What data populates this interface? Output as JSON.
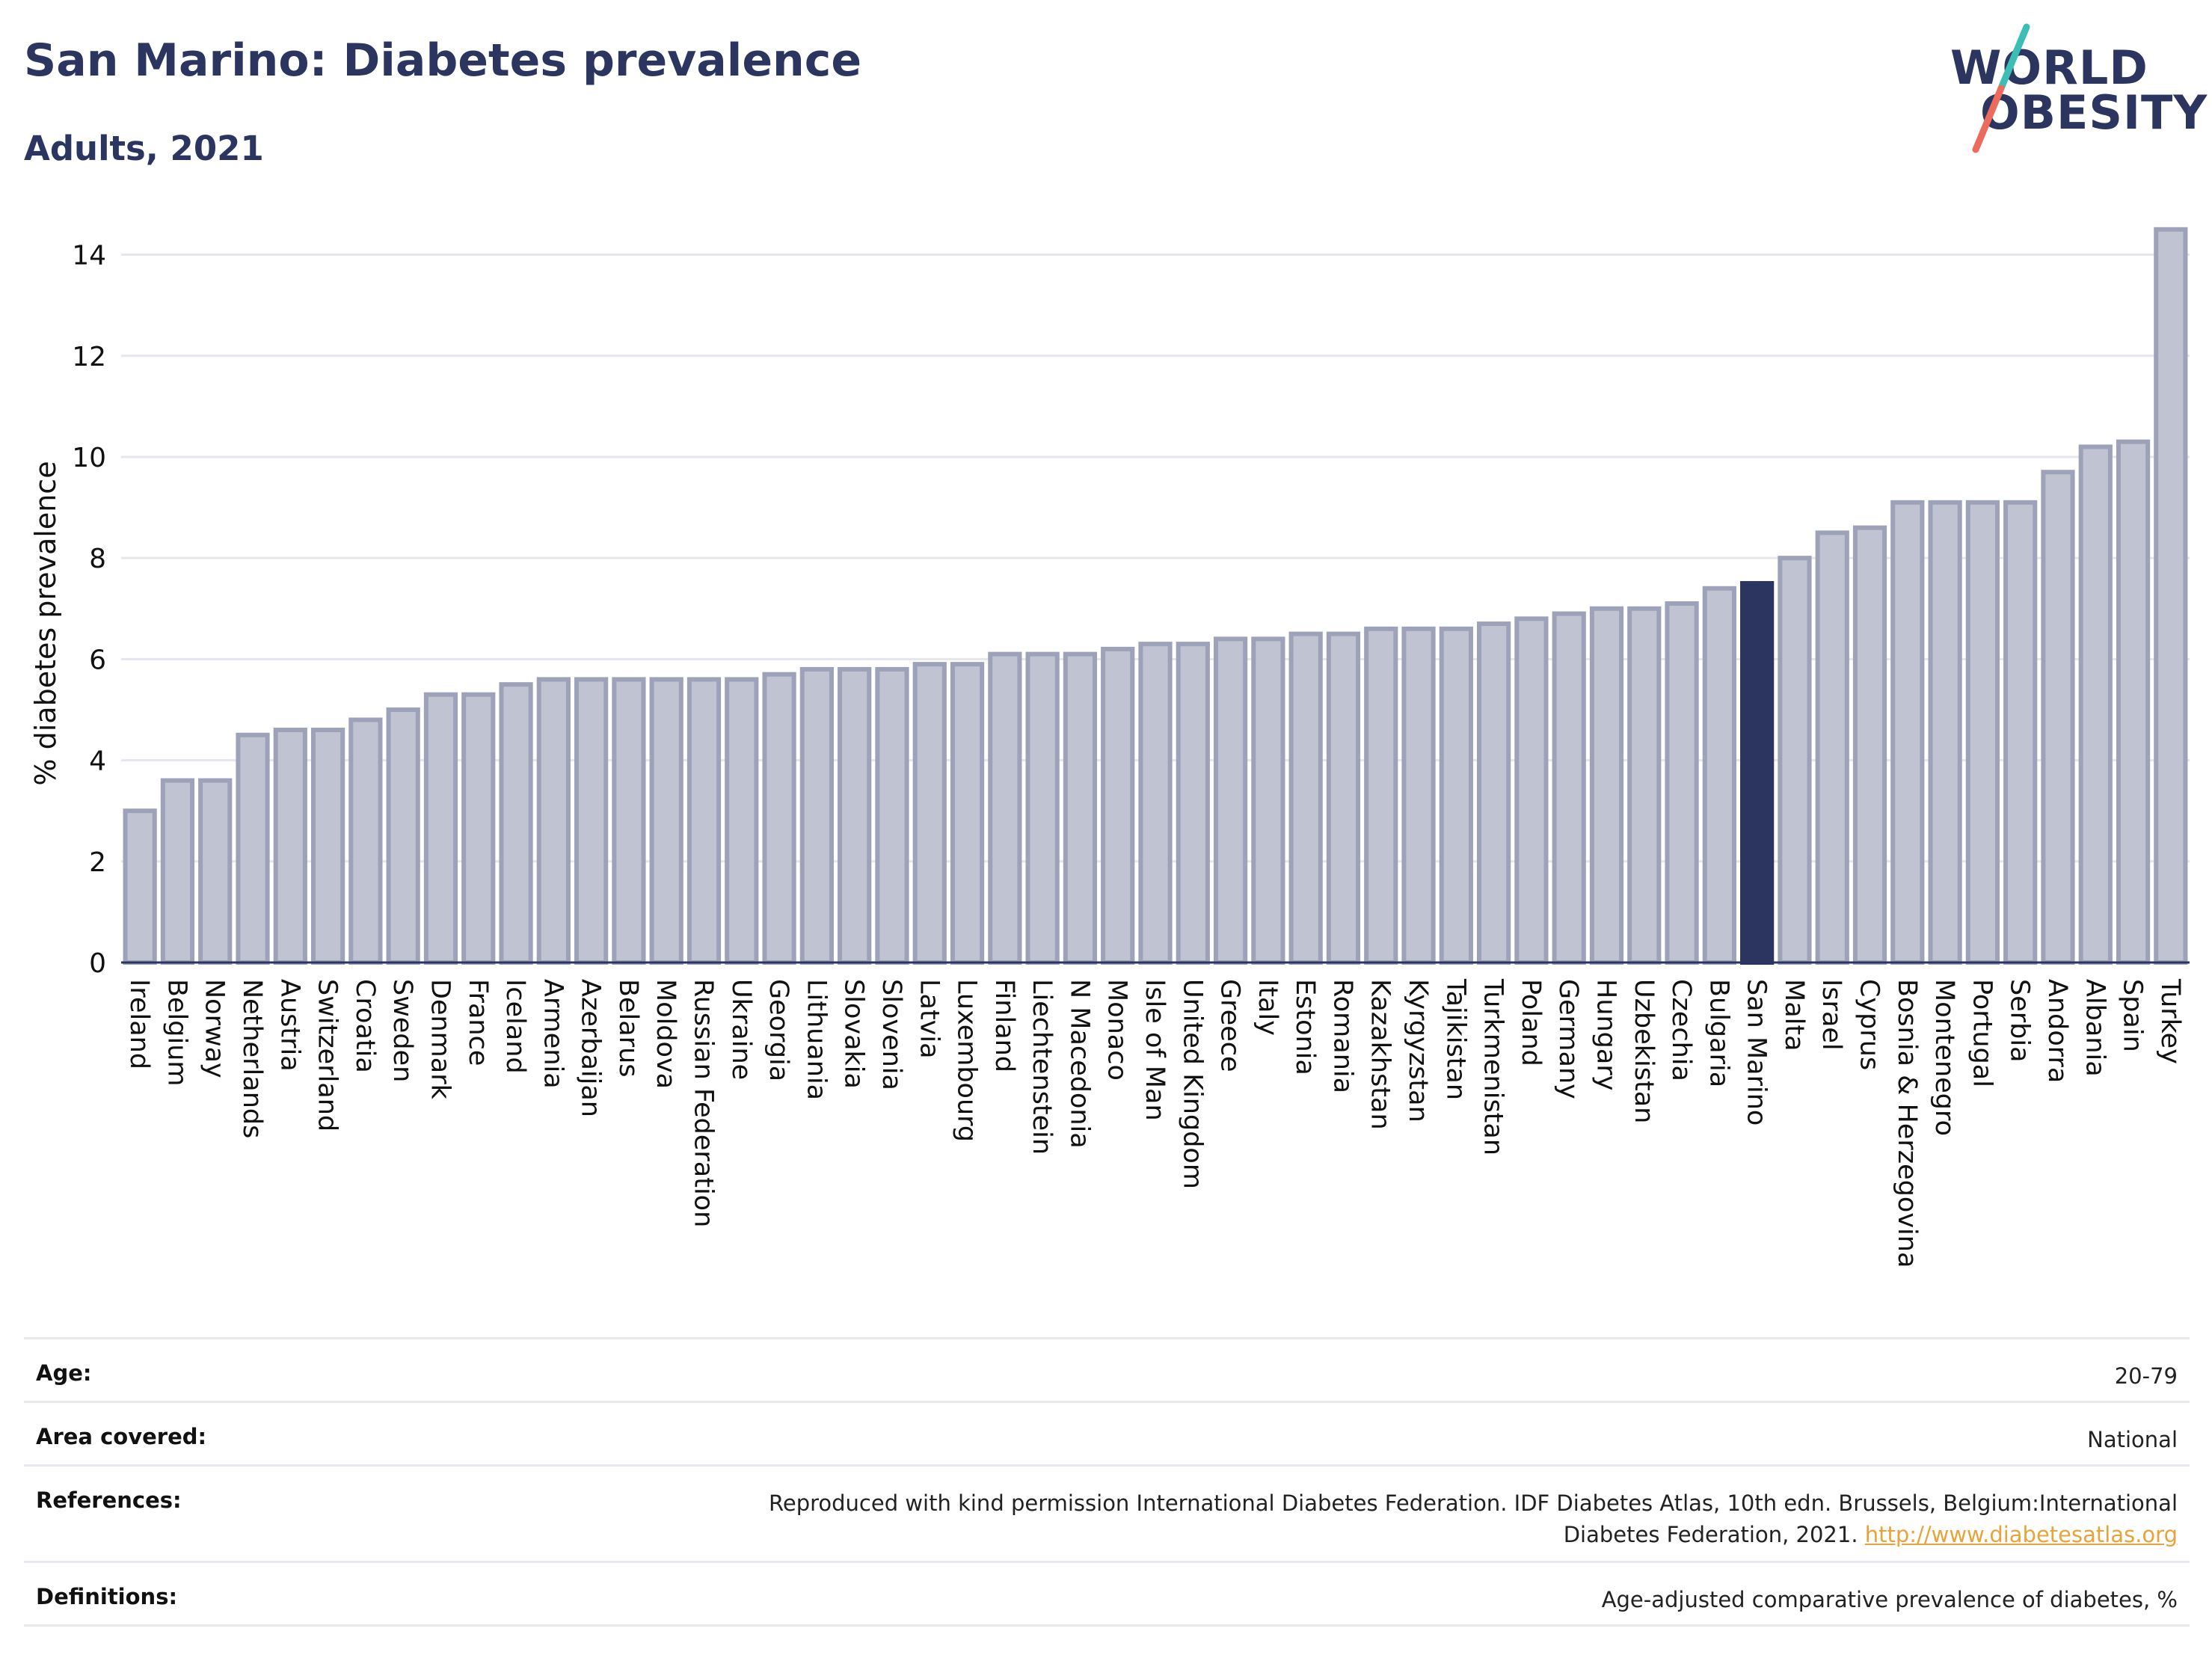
{
  "header": {
    "title": "San Marino: Diabetes prevalence",
    "subtitle": "Adults, 2021"
  },
  "logo": {
    "line1": "WORLD",
    "line2": "OBESITY",
    "brand_color": "#2b3560",
    "accent_teal": "#3bbfb4",
    "accent_coral": "#ec6b5d"
  },
  "chart_data": {
    "type": "bar",
    "ylabel": "% diabetes prevalence",
    "xlabel": "",
    "ylim": [
      0,
      14.6
    ],
    "yticks": [
      0,
      2,
      4,
      6,
      8,
      10,
      12,
      14
    ],
    "grid": true,
    "highlight": "San Marino",
    "colors": {
      "bar": "#c0c3d1",
      "bar_edge": "#9da2b9",
      "highlight": "#2b3560"
    },
    "categories": [
      "Ireland",
      "Belgium",
      "Norway",
      "Netherlands",
      "Austria",
      "Switzerland",
      "Croatia",
      "Sweden",
      "Denmark",
      "France",
      "Iceland",
      "Armenia",
      "Azerbaijan",
      "Belarus",
      "Moldova",
      "Russian Federation",
      "Ukraine",
      "Georgia",
      "Lithuania",
      "Slovakia",
      "Slovenia",
      "Latvia",
      "Luxembourg",
      "Finland",
      "Liechtenstein",
      "N Macedonia",
      "Monaco",
      "Isle of Man",
      "United Kingdom",
      "Greece",
      "Italy",
      "Estonia",
      "Romania",
      "Kazakhstan",
      "Kyrgyzstan",
      "Tajikistan",
      "Turkmenistan",
      "Poland",
      "Germany",
      "Hungary",
      "Uzbekistan",
      "Czechia",
      "Bulgaria",
      "San Marino",
      "Malta",
      "Israel",
      "Cyprus",
      "Bosnia & Herzegovina",
      "Montenegro",
      "Portugal",
      "Serbia",
      "Andorra",
      "Albania",
      "Spain",
      "Turkey"
    ],
    "values": [
      3.0,
      3.6,
      3.6,
      4.5,
      4.6,
      4.6,
      4.8,
      5.0,
      5.3,
      5.3,
      5.5,
      5.6,
      5.6,
      5.6,
      5.6,
      5.6,
      5.6,
      5.7,
      5.8,
      5.8,
      5.8,
      5.9,
      5.9,
      6.1,
      6.1,
      6.1,
      6.2,
      6.3,
      6.3,
      6.4,
      6.4,
      6.5,
      6.5,
      6.6,
      6.6,
      6.6,
      6.7,
      6.8,
      6.9,
      7.0,
      7.0,
      7.1,
      7.4,
      7.5,
      8.0,
      8.5,
      8.6,
      9.1,
      9.1,
      9.1,
      9.1,
      9.7,
      10.2,
      10.3,
      14.5
    ]
  },
  "meta": [
    {
      "label": "Age:",
      "value": "20-79"
    },
    {
      "label": "Area covered:",
      "value": "National"
    },
    {
      "label": "References:",
      "value": "Reproduced with kind permission International Diabetes Federation.  IDF Diabetes Atlas, 10th edn. Brussels, Belgium:International Diabetes Federation, 2021.",
      "link": "http://www.diabetesatlas.org"
    },
    {
      "label": "Definitions:",
      "value": "Age-adjusted comparative prevalence of diabetes, %"
    }
  ]
}
